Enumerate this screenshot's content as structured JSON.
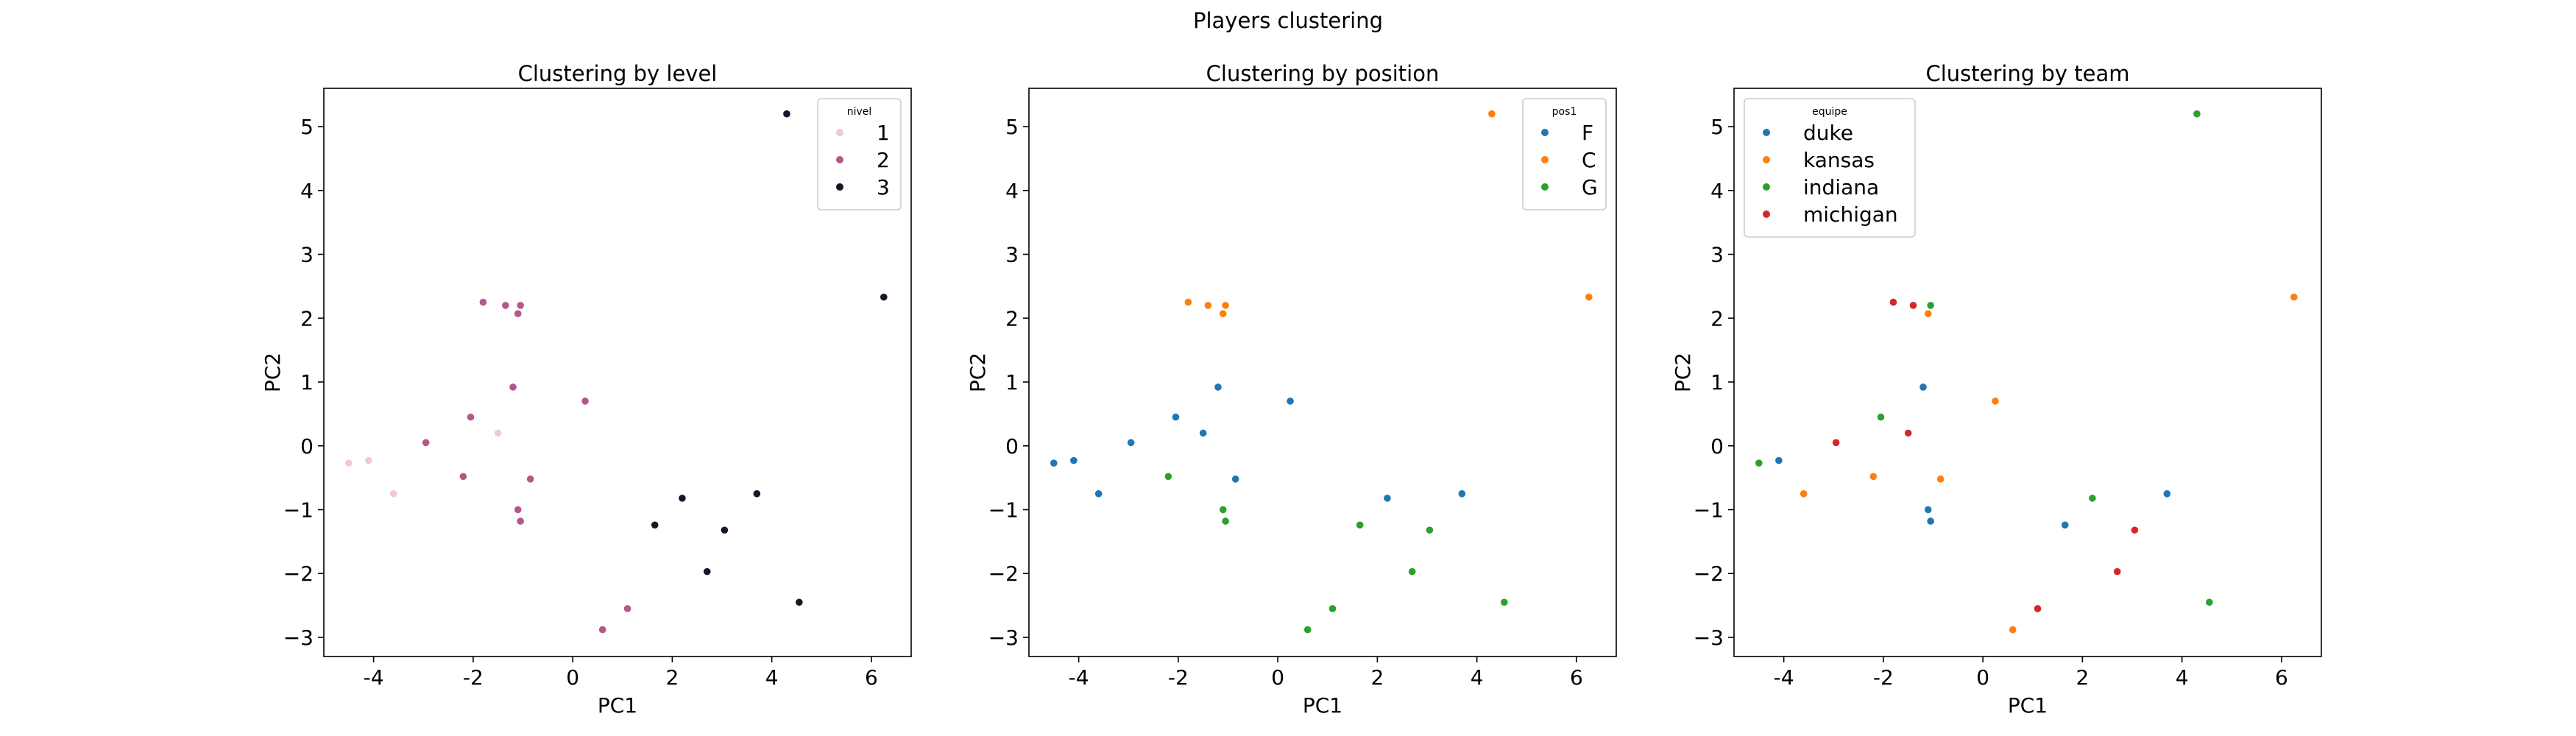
{
  "figure": {
    "title": "Players clustering"
  },
  "chart_data": [
    {
      "type": "scatter",
      "title": "Clustering by level",
      "xlabel": "PC1",
      "ylabel": "PC2",
      "xlim": [
        -5.0,
        6.8
      ],
      "ylim": [
        -3.3,
        5.6
      ],
      "xticks": [
        -4,
        -2,
        0,
        2,
        4,
        6
      ],
      "yticks": [
        -3,
        -2,
        -1,
        0,
        1,
        2,
        3,
        4,
        5
      ],
      "grid": false,
      "legend": {
        "title": "nivel",
        "placement": "top-right"
      },
      "series": [
        {
          "name": "1",
          "color": "#f0c8d8",
          "points": [
            [
              -4.5,
              -0.27
            ],
            [
              -4.1,
              -0.23
            ],
            [
              -3.6,
              -0.75
            ],
            [
              -1.5,
              0.2
            ]
          ]
        },
        {
          "name": "2",
          "color": "#b4588b",
          "points": [
            [
              -1.8,
              2.25
            ],
            [
              -1.35,
              2.2
            ],
            [
              -1.05,
              2.2
            ],
            [
              -1.1,
              2.07
            ],
            [
              -1.2,
              0.92
            ],
            [
              -2.05,
              0.45
            ],
            [
              -2.95,
              0.05
            ],
            [
              -2.2,
              -0.48
            ],
            [
              -0.85,
              -0.52
            ],
            [
              -1.1,
              -1.0
            ],
            [
              -1.05,
              -1.18
            ],
            [
              0.25,
              0.7
            ],
            [
              1.1,
              -2.55
            ],
            [
              0.6,
              -2.88
            ]
          ]
        },
        {
          "name": "3",
          "color": "#1e1428",
          "points": [
            [
              4.3,
              5.2
            ],
            [
              6.25,
              2.33
            ],
            [
              2.2,
              -0.82
            ],
            [
              3.7,
              -0.75
            ],
            [
              1.65,
              -1.24
            ],
            [
              3.05,
              -1.32
            ],
            [
              2.7,
              -1.97
            ],
            [
              4.55,
              -2.45
            ]
          ]
        }
      ]
    },
    {
      "type": "scatter",
      "title": "Clustering by position",
      "xlabel": "PC1",
      "ylabel": "PC2",
      "xlim": [
        -5.0,
        6.8
      ],
      "ylim": [
        -3.3,
        5.6
      ],
      "xticks": [
        -4,
        -2,
        0,
        2,
        4,
        6
      ],
      "yticks": [
        -3,
        -2,
        -1,
        0,
        1,
        2,
        3,
        4,
        5
      ],
      "grid": false,
      "legend": {
        "title": "pos1",
        "placement": "top-right"
      },
      "series": [
        {
          "name": "F",
          "color": "#1f77b4",
          "points": [
            [
              -4.5,
              -0.27
            ],
            [
              -4.1,
              -0.23
            ],
            [
              -3.6,
              -0.75
            ],
            [
              -2.95,
              0.05
            ],
            [
              -2.05,
              0.45
            ],
            [
              -1.5,
              0.2
            ],
            [
              -1.2,
              0.92
            ],
            [
              -0.85,
              -0.52
            ],
            [
              0.25,
              0.7
            ],
            [
              2.2,
              -0.82
            ],
            [
              3.7,
              -0.75
            ]
          ]
        },
        {
          "name": "C",
          "color": "#ff7f0e",
          "points": [
            [
              4.3,
              5.2
            ],
            [
              6.25,
              2.33
            ],
            [
              -1.8,
              2.25
            ],
            [
              -1.4,
              2.2
            ],
            [
              -1.05,
              2.2
            ],
            [
              -1.1,
              2.07
            ]
          ]
        },
        {
          "name": "G",
          "color": "#2ca02c",
          "points": [
            [
              -2.2,
              -0.48
            ],
            [
              -1.1,
              -1.0
            ],
            [
              -1.05,
              -1.18
            ],
            [
              1.65,
              -1.24
            ],
            [
              3.05,
              -1.32
            ],
            [
              2.7,
              -1.97
            ],
            [
              4.55,
              -2.45
            ],
            [
              1.1,
              -2.55
            ],
            [
              0.6,
              -2.88
            ]
          ]
        }
      ]
    },
    {
      "type": "scatter",
      "title": "Clustering by team",
      "xlabel": "PC1",
      "ylabel": "PC2",
      "xlim": [
        -5.0,
        6.8
      ],
      "ylim": [
        -3.3,
        5.6
      ],
      "xticks": [
        -4,
        -2,
        0,
        2,
        4,
        6
      ],
      "yticks": [
        -3,
        -2,
        -1,
        0,
        1,
        2,
        3,
        4,
        5
      ],
      "grid": false,
      "legend": {
        "title": "equipe",
        "placement": "top-left"
      },
      "series": [
        {
          "name": "duke",
          "color": "#1f77b4",
          "points": [
            [
              -4.1,
              -0.23
            ],
            [
              -1.2,
              0.92
            ],
            [
              -1.1,
              -1.0
            ],
            [
              -1.05,
              -1.18
            ],
            [
              1.65,
              -1.24
            ],
            [
              3.7,
              -0.75
            ]
          ]
        },
        {
          "name": "kansas",
          "color": "#ff7f0e",
          "points": [
            [
              -3.6,
              -0.75
            ],
            [
              -2.2,
              -0.48
            ],
            [
              -0.85,
              -0.52
            ],
            [
              -1.1,
              2.07
            ],
            [
              0.25,
              0.7
            ],
            [
              0.6,
              -2.88
            ],
            [
              6.25,
              2.33
            ]
          ]
        },
        {
          "name": "indiana",
          "color": "#2ca02c",
          "points": [
            [
              -4.5,
              -0.27
            ],
            [
              -2.05,
              0.45
            ],
            [
              -1.05,
              2.2
            ],
            [
              2.2,
              -0.82
            ],
            [
              4.55,
              -2.45
            ],
            [
              4.3,
              5.2
            ]
          ]
        },
        {
          "name": "michigan",
          "color": "#d62728",
          "points": [
            [
              -2.95,
              0.05
            ],
            [
              -1.8,
              2.25
            ],
            [
              -1.4,
              2.2
            ],
            [
              -1.5,
              0.2
            ],
            [
              1.1,
              -2.55
            ],
            [
              2.7,
              -1.97
            ],
            [
              3.05,
              -1.32
            ]
          ]
        }
      ]
    }
  ]
}
